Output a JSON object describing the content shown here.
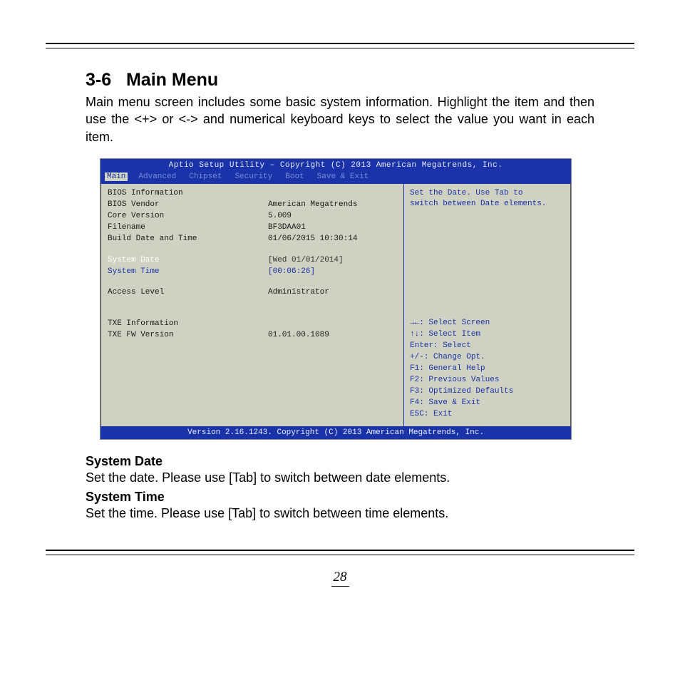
{
  "doc": {
    "section_number": "3-6",
    "section_title": "Main Menu",
    "intro": "Main menu screen includes some basic system information. Highlight the item and then use the <+> or <-> and numerical keyboard keys to select the value you want in each item.",
    "subtitle1": "System Date",
    "desc1": "Set the date. Please use [Tab] to switch between date elements.",
    "subtitle2": "System Time",
    "desc2": "Set the time. Please use [Tab] to switch between time elements.",
    "page_number": "28"
  },
  "bios": {
    "titlebar": "Aptio Setup Utility – Copyright (C) 2013 American Megatrends, Inc.",
    "tabs": [
      "Main",
      "Advanced",
      "Chipset",
      "Security",
      "Boot",
      "Save & Exit"
    ],
    "active_tab_index": 0,
    "info_heading": "BIOS Information",
    "rows": {
      "vendor_label": "BIOS Vendor",
      "vendor_value": "American Megatrends",
      "core_label": "Core Version",
      "core_value": "5.009",
      "file_label": "Filename",
      "file_value": "BF3DAA01",
      "build_label": "Build Date and Time",
      "build_value": "01/06/2015 10:30:14",
      "date_label": "System Date",
      "date_value": "[Wed 01/01/2014]",
      "time_label": "System Time",
      "time_value": "[00:06:26]",
      "access_label": "Access Level",
      "access_value": "Administrator",
      "txe_heading": "TXE Information",
      "txefw_label": "TXE FW Version",
      "txefw_value": "01.01.00.1089"
    },
    "hint_line1": "Set the Date. Use Tab to",
    "hint_line2": "switch between Date elements.",
    "keys": [
      "→←: Select Screen",
      "↑↓: Select Item",
      "Enter: Select",
      "+/-: Change Opt.",
      "F1: General Help",
      "F2: Previous Values",
      "F3: Optimized Defaults",
      "F4: Save & Exit",
      "ESC: Exit"
    ],
    "footer": "Version 2.16.1243. Copyright (C) 2013 American Megatrends, Inc."
  },
  "colors": {
    "bios_blue": "#1a33a8",
    "bios_bg": "#cfd1c2",
    "text_white": "#ffffff"
  }
}
